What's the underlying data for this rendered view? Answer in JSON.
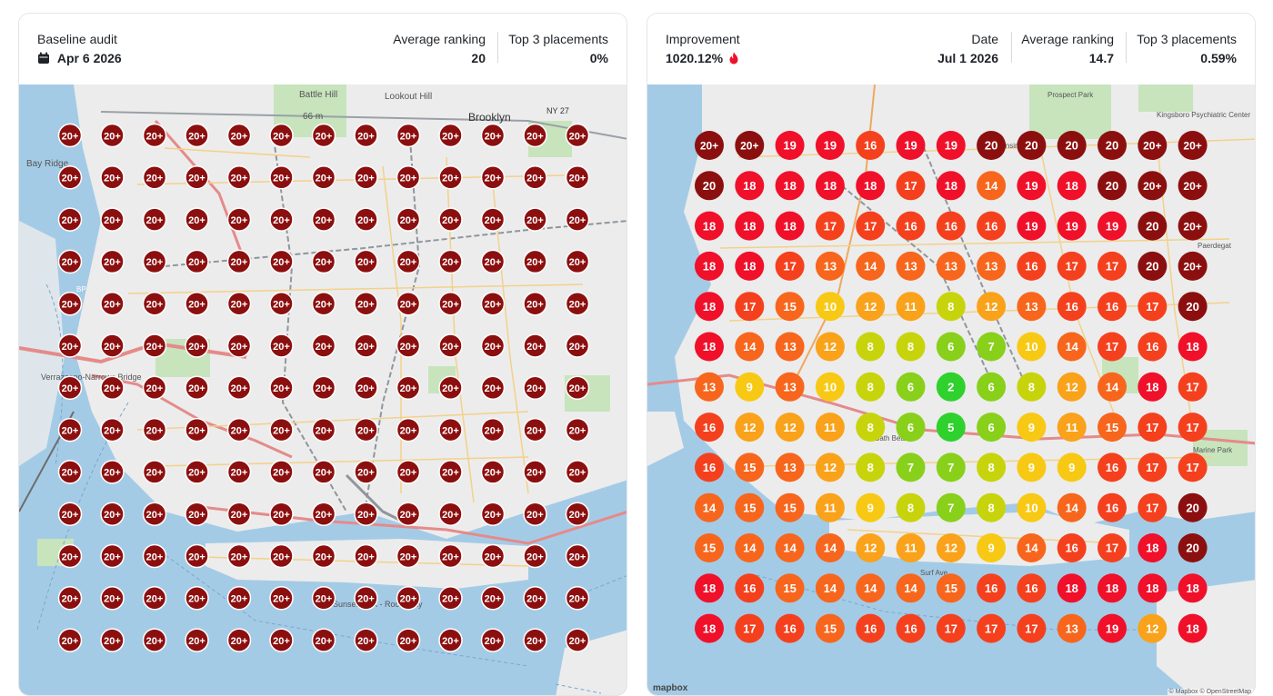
{
  "left": {
    "label": "Baseline audit",
    "date": "Apr 6 2026",
    "avg_label": "Average ranking",
    "avg_value": "20",
    "top_label": "Top 3 placements",
    "top_value": "0%",
    "grid": [
      [
        "20+",
        "20+",
        "20+",
        "20+",
        "20+",
        "20+",
        "20+",
        "20+",
        "20+",
        "20+",
        "20+",
        "20+",
        "20+"
      ],
      [
        "20+",
        "20+",
        "20+",
        "20+",
        "20+",
        "20+",
        "20+",
        "20+",
        "20+",
        "20+",
        "20+",
        "20+",
        "20+"
      ],
      [
        "20+",
        "20+",
        "20+",
        "20+",
        "20+",
        "20+",
        "20+",
        "20+",
        "20+",
        "20+",
        "20+",
        "20+",
        "20+"
      ],
      [
        "20+",
        "20+",
        "20+",
        "20+",
        "20+",
        "20+",
        "20+",
        "20+",
        "20+",
        "20+",
        "20+",
        "20+",
        "20+"
      ],
      [
        "20+",
        "20+",
        "20+",
        "20+",
        "20+",
        "20+",
        "20+",
        "20+",
        "20+",
        "20+",
        "20+",
        "20+",
        "20+"
      ],
      [
        "20+",
        "20+",
        "20+",
        "20+",
        "20+",
        "20+",
        "20+",
        "20+",
        "20+",
        "20+",
        "20+",
        "20+",
        "20+"
      ],
      [
        "20+",
        "20+",
        "20+",
        "20+",
        "20+",
        "20+",
        "20+",
        "20+",
        "20+",
        "20+",
        "20+",
        "20+",
        "20+"
      ],
      [
        "20+",
        "20+",
        "20+",
        "20+",
        "20+",
        "20+",
        "20+",
        "20+",
        "20+",
        "20+",
        "20+",
        "20+",
        "20+"
      ],
      [
        "20+",
        "20+",
        "20+",
        "20+",
        "20+",
        "20+",
        "20+",
        "20+",
        "20+",
        "20+",
        "20+",
        "20+",
        "20+"
      ],
      [
        "20+",
        "20+",
        "20+",
        "20+",
        "20+",
        "20+",
        "20+",
        "20+",
        "20+",
        "20+",
        "20+",
        "20+",
        "20+"
      ],
      [
        "20+",
        "20+",
        "20+",
        "20+",
        "20+",
        "20+",
        "20+",
        "20+",
        "20+",
        "20+",
        "20+",
        "20+",
        "20+"
      ],
      [
        "20+",
        "20+",
        "20+",
        "20+",
        "20+",
        "20+",
        "20+",
        "20+",
        "20+",
        "20+",
        "20+",
        "20+",
        "20+"
      ],
      [
        "20+",
        "20+",
        "20+",
        "20+",
        "20+",
        "20+",
        "20+",
        "20+",
        "20+",
        "20+",
        "20+",
        "20+",
        "20+"
      ]
    ],
    "map_labels": [
      "Battle Hill",
      "66 m",
      "Lookout Hill",
      "Brooklyn",
      "NY 27",
      "Bay Ridge",
      "Verrazzano-Narrows Bridge",
      "Sunset Park - Rockaway",
      "BP"
    ]
  },
  "right": {
    "label": "Improvement",
    "improvement": "1020.12%",
    "date_label": "Date",
    "date": "Jul 1 2026",
    "avg_label": "Average ranking",
    "avg_value": "14.7",
    "top_label": "Top 3 placements",
    "top_value": "0.59%",
    "grid": [
      [
        "20+",
        "20+",
        "19",
        "19",
        "16",
        "19",
        "19",
        "20",
        "20",
        "20",
        "20",
        "20+",
        "20+"
      ],
      [
        "20",
        "18",
        "18",
        "18",
        "18",
        "17",
        "18",
        "14",
        "19",
        "18",
        "20",
        "20+",
        "20+"
      ],
      [
        "18",
        "18",
        "18",
        "17",
        "17",
        "16",
        "16",
        "16",
        "19",
        "19",
        "19",
        "20",
        "20+"
      ],
      [
        "18",
        "18",
        "17",
        "13",
        "14",
        "13",
        "13",
        "13",
        "16",
        "17",
        "17",
        "20",
        "20+"
      ],
      [
        "18",
        "17",
        "15",
        "10",
        "12",
        "11",
        "8",
        "12",
        "13",
        "16",
        "16",
        "17",
        "20"
      ],
      [
        "18",
        "14",
        "13",
        "12",
        "8",
        "8",
        "6",
        "7",
        "10",
        "14",
        "17",
        "16",
        "18"
      ],
      [
        "13",
        "9",
        "13",
        "10",
        "8",
        "6",
        "2",
        "6",
        "8",
        "12",
        "14",
        "18",
        "17"
      ],
      [
        "16",
        "12",
        "12",
        "11",
        "8",
        "6",
        "5",
        "6",
        "9",
        "11",
        "15",
        "17",
        "17"
      ],
      [
        "16",
        "15",
        "13",
        "12",
        "8",
        "7",
        "7",
        "8",
        "9",
        "9",
        "16",
        "17",
        "17"
      ],
      [
        "14",
        "15",
        "15",
        "11",
        "9",
        "8",
        "7",
        "8",
        "10",
        "14",
        "16",
        "17",
        "20"
      ],
      [
        "15",
        "14",
        "14",
        "14",
        "12",
        "11",
        "12",
        "9",
        "14",
        "16",
        "17",
        "18",
        "20"
      ],
      [
        "18",
        "16",
        "15",
        "14",
        "14",
        "14",
        "15",
        "16",
        "16",
        "18",
        "18",
        "18",
        "18"
      ],
      [
        "18",
        "17",
        "16",
        "15",
        "16",
        "16",
        "17",
        "17",
        "17",
        "13",
        "19",
        "12",
        "18"
      ]
    ],
    "map_labels": [
      "Kingsboro Psychiatric Center",
      "Kensington",
      "Bath Beach",
      "Marine Park",
      "Paerdegat",
      "Prospect Park",
      "Surf Ave"
    ],
    "attribution": "© Mapbox © OpenStreetMap",
    "logo": "mapbox"
  },
  "colors": {
    "dark_red": "#8c0f0f",
    "red": "#f0102a",
    "red_orange": "#f5401e",
    "orange": "#f7661c",
    "light_orange": "#f9a21a",
    "yellow": "#f8c914",
    "yellow_green": "#c7d40b",
    "lime": "#88d01a",
    "green": "#2fd12c",
    "water": "#a4cbe6",
    "land": "#ececec",
    "park": "#c7e4bd"
  }
}
